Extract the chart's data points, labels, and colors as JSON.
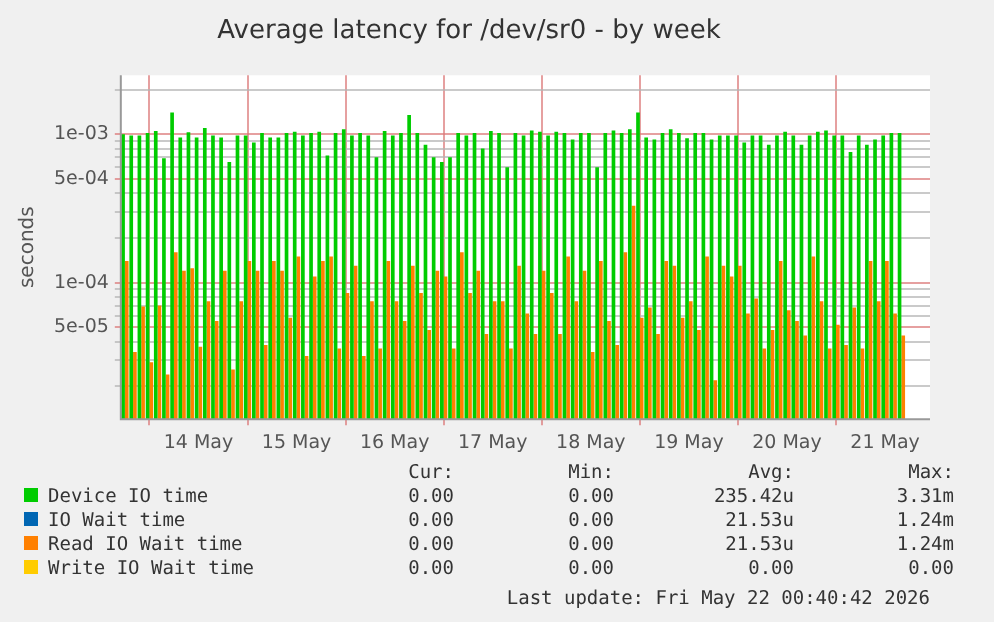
{
  "chart_data": {
    "type": "bar",
    "title": "Average latency for /dev/sr0 - by week",
    "ylabel": "seconds",
    "log": "y",
    "grid": true,
    "legend": "bottom",
    "x": [
      "2026-05-13T06:00",
      "2026-05-13T08:00",
      "2026-05-13T10:00",
      "2026-05-13T12:00",
      "2026-05-13T14:00",
      "2026-05-13T16:00",
      "2026-05-13T18:00",
      "2026-05-13T20:00",
      "2026-05-13T22:00",
      "2026-05-14T00:00",
      "2026-05-14T02:00",
      "2026-05-14T04:00",
      "2026-05-14T06:00",
      "2026-05-14T08:00",
      "2026-05-14T10:00",
      "2026-05-14T12:00",
      "2026-05-14T14:00",
      "2026-05-14T16:00",
      "2026-05-14T18:00",
      "2026-05-14T20:00",
      "2026-05-14T22:00",
      "2026-05-15T00:00",
      "2026-05-15T02:00",
      "2026-05-15T04:00",
      "2026-05-15T06:00",
      "2026-05-15T08:00",
      "2026-05-15T10:00",
      "2026-05-15T12:00",
      "2026-05-15T14:00",
      "2026-05-15T16:00",
      "2026-05-15T18:00",
      "2026-05-15T20:00",
      "2026-05-15T22:00",
      "2026-05-16T00:00",
      "2026-05-16T02:00",
      "2026-05-16T04:00",
      "2026-05-16T06:00",
      "2026-05-16T08:00",
      "2026-05-16T10:00",
      "2026-05-16T12:00",
      "2026-05-16T14:00",
      "2026-05-16T16:00",
      "2026-05-16T18:00",
      "2026-05-16T20:00",
      "2026-05-16T22:00",
      "2026-05-17T00:00",
      "2026-05-17T02:00",
      "2026-05-17T04:00",
      "2026-05-17T06:00",
      "2026-05-17T08:00",
      "2026-05-17T10:00",
      "2026-05-17T12:00",
      "2026-05-17T14:00",
      "2026-05-17T16:00",
      "2026-05-17T18:00",
      "2026-05-17T20:00",
      "2026-05-17T22:00",
      "2026-05-18T00:00",
      "2026-05-18T02:00",
      "2026-05-18T04:00",
      "2026-05-18T06:00",
      "2026-05-18T08:00",
      "2026-05-18T10:00",
      "2026-05-18T12:00",
      "2026-05-18T14:00",
      "2026-05-18T16:00",
      "2026-05-18T18:00",
      "2026-05-18T20:00",
      "2026-05-18T22:00",
      "2026-05-19T00:00",
      "2026-05-19T02:00",
      "2026-05-19T04:00",
      "2026-05-19T06:00",
      "2026-05-19T08:00",
      "2026-05-19T10:00",
      "2026-05-19T12:00",
      "2026-05-19T14:00",
      "2026-05-19T16:00",
      "2026-05-19T18:00",
      "2026-05-19T20:00",
      "2026-05-19T22:00",
      "2026-05-20T00:00",
      "2026-05-20T02:00",
      "2026-05-20T04:00",
      "2026-05-20T06:00",
      "2026-05-20T08:00",
      "2026-05-20T10:00",
      "2026-05-20T12:00",
      "2026-05-20T14:00",
      "2026-05-20T16:00",
      "2026-05-20T18:00",
      "2026-05-20T20:00",
      "2026-05-20T22:00",
      "2026-05-21T00:00",
      "2026-05-21T02:00",
      "2026-05-21T04:00"
    ],
    "xlim": [
      "2026-05-13T05:00",
      "2026-05-21T11:00"
    ],
    "xticks": [
      {
        "value": "2026-05-14",
        "label": "14 May"
      },
      {
        "value": "2026-05-15",
        "label": "15 May"
      },
      {
        "value": "2026-05-16",
        "label": "16 May"
      },
      {
        "value": "2026-05-17",
        "label": "17 May"
      },
      {
        "value": "2026-05-18",
        "label": "18 May"
      },
      {
        "value": "2026-05-19",
        "label": "19 May"
      },
      {
        "value": "2026-05-20",
        "label": "20 May"
      },
      {
        "value": "2026-05-21",
        "label": "21 May"
      }
    ],
    "ylim": [
      1.2e-05,
      0.0025
    ],
    "yticks": [
      {
        "value": 2e-05,
        "label": null
      },
      {
        "value": 3e-05,
        "label": null
      },
      {
        "value": 4e-05,
        "label": null
      },
      {
        "value": 5e-05,
        "label": "5e-05"
      },
      {
        "value": 6e-05,
        "label": null
      },
      {
        "value": 7e-05,
        "label": null
      },
      {
        "value": 8e-05,
        "label": null
      },
      {
        "value": 9e-05,
        "label": null
      },
      {
        "value": 0.0001,
        "label": "1e-04"
      },
      {
        "value": 0.0002,
        "label": null
      },
      {
        "value": 0.0003,
        "label": null
      },
      {
        "value": 0.0004,
        "label": null
      },
      {
        "value": 0.0005,
        "label": "5e-04"
      },
      {
        "value": 0.0006,
        "label": null
      },
      {
        "value": 0.0007,
        "label": null
      },
      {
        "value": 0.0008,
        "label": null
      },
      {
        "value": 0.0009,
        "label": null
      },
      {
        "value": 0.001,
        "label": "1e-03"
      },
      {
        "value": 0.002,
        "label": null
      }
    ],
    "series": [
      {
        "name": "Device IO time",
        "color": "#00cc00",
        "values": [
          0.001,
          0.00098,
          0.00098,
          0.00102,
          0.00105,
          0.00069,
          0.0014,
          0.00095,
          0.00103,
          0.00095,
          0.0011,
          0.00098,
          0.00095,
          0.00065,
          0.00098,
          0.00098,
          0.00088,
          0.00102,
          0.00095,
          0.00095,
          0.00102,
          0.00104,
          0.00098,
          0.00102,
          0.00104,
          0.00072,
          0.00102,
          0.00108,
          0.00098,
          0.00102,
          0.00098,
          0.0007,
          0.00105,
          0.00098,
          0.00102,
          0.00135,
          0.00102,
          0.00085,
          0.0007,
          0.00065,
          0.0007,
          0.00102,
          0.00098,
          0.00102,
          0.0008,
          0.00105,
          0.00102,
          0.0006,
          0.00102,
          0.00098,
          0.00106,
          0.00104,
          0.00098,
          0.00104,
          0.00102,
          0.00092,
          0.00102,
          0.00102,
          0.0006,
          0.00102,
          0.00106,
          0.00102,
          0.00108,
          0.0014,
          0.00095,
          0.00092,
          0.00102,
          0.00108,
          0.00102,
          0.00094,
          0.00102,
          0.00102,
          0.00092,
          0.00098,
          0.00098,
          0.00098,
          0.00088,
          0.00098,
          0.00098,
          0.00085,
          0.00098,
          0.00104,
          0.00098,
          0.00085,
          0.00098,
          0.00104,
          0.00106,
          0.00098,
          0.00098,
          0.00076,
          0.00098,
          0.00085,
          0.00092,
          0.00098,
          0.00102,
          0.00102
        ]
      },
      {
        "name": "IO Wait time",
        "color": "#0066b3",
        "values": [
          null,
          null,
          null,
          null,
          null,
          null,
          null,
          null,
          null,
          null,
          null,
          null,
          null,
          null,
          null,
          null,
          null,
          null,
          null,
          null,
          null,
          null,
          null,
          null,
          null,
          null,
          null,
          null,
          null,
          null,
          null,
          null,
          null,
          null,
          null,
          null,
          null,
          null,
          null,
          null,
          null,
          null,
          null,
          null,
          null,
          null,
          null,
          null,
          null,
          null,
          null,
          null,
          null,
          null,
          null,
          null,
          null,
          null,
          null,
          null,
          null,
          null,
          null,
          null,
          null,
          null,
          null,
          null,
          null,
          null,
          null,
          null,
          null,
          null,
          null,
          null,
          null,
          null,
          null,
          null,
          null,
          null,
          null,
          null,
          null,
          null,
          null,
          null,
          null,
          null,
          null,
          null,
          null,
          null,
          null,
          null
        ]
      },
      {
        "name": "Read IO Wait time",
        "color": "#ff8000",
        "values": [
          0.00014,
          3.4e-05,
          6.9e-05,
          2.9e-05,
          7e-05,
          2.4e-05,
          0.00016,
          0.00012,
          0.000125,
          3.7e-05,
          7.5e-05,
          5.5e-05,
          0.00012,
          2.6e-05,
          7.5e-05,
          0.00014,
          0.00012,
          3.8e-05,
          0.00014,
          0.00012,
          5.8e-05,
          0.00015,
          3.2e-05,
          0.00011,
          0.00014,
          0.00015,
          3.6e-05,
          8.5e-05,
          0.00013,
          3.2e-05,
          7.5e-05,
          3.6e-05,
          0.00014,
          7.5e-05,
          5.5e-05,
          0.00013,
          8.5e-05,
          4.8e-05,
          0.00012,
          0.00011,
          3.6e-05,
          0.00016,
          8.5e-05,
          0.00012,
          4.5e-05,
          7.5e-05,
          7.5e-05,
          3.6e-05,
          0.00013,
          6.2e-05,
          4.5e-05,
          0.00012,
          8.5e-05,
          4.5e-05,
          0.00015,
          7.5e-05,
          0.00012,
          3.4e-05,
          0.00014,
          5.5e-05,
          3.8e-05,
          0.00016,
          0.00033,
          5.8e-05,
          6.8e-05,
          4.5e-05,
          0.00014,
          0.00013,
          5.8e-05,
          7.5e-05,
          4.8e-05,
          0.00015,
          2.2e-05,
          0.00013,
          0.00011,
          0.00013,
          6.2e-05,
          7.8e-05,
          3.6e-05,
          4.8e-05,
          0.00014,
          6.5e-05,
          5.5e-05,
          4.4e-05,
          0.00015,
          7.5e-05,
          3.6e-05,
          5.2e-05,
          3.8e-05,
          6.8e-05,
          3.6e-05,
          0.00014,
          7.5e-05,
          0.00014,
          6.2e-05,
          4.4e-05
        ]
      },
      {
        "name": "Write IO Wait time",
        "color": "#ffcc00",
        "values": [
          null,
          null,
          null,
          null,
          null,
          null,
          null,
          null,
          null,
          null,
          null,
          null,
          null,
          null,
          null,
          null,
          null,
          null,
          null,
          null,
          null,
          null,
          null,
          null,
          null,
          null,
          null,
          null,
          null,
          null,
          null,
          null,
          null,
          null,
          null,
          null,
          null,
          null,
          null,
          null,
          null,
          null,
          null,
          null,
          null,
          null,
          null,
          null,
          null,
          null,
          null,
          null,
          null,
          null,
          null,
          null,
          null,
          null,
          null,
          null,
          null,
          null,
          null,
          null,
          null,
          null,
          null,
          null,
          null,
          null,
          null,
          null,
          null,
          null,
          null,
          null,
          null,
          null,
          null,
          null,
          null,
          null,
          null,
          null,
          null,
          null,
          null,
          null,
          null,
          null,
          null,
          null,
          null,
          null,
          null,
          null
        ]
      }
    ],
    "annotations": [
      "Cur:",
      "Min:",
      "Avg:",
      "Max:",
      "0.00",
      "0.00",
      "235.42u",
      "3.31m",
      "0.00",
      "0.00",
      "21.53u",
      "1.24m",
      "0.00",
      "0.00",
      "21.53u",
      "1.24m",
      "0.00",
      "0.00",
      "0.00",
      "0.00",
      "Last update: Fri May 22 00:40:42 2026"
    ]
  }
}
